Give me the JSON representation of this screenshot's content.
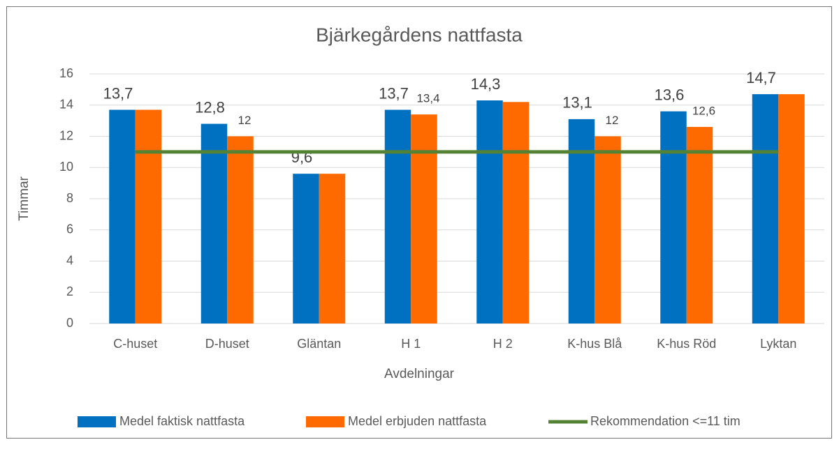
{
  "chart_data": {
    "type": "bar",
    "title": "Bjärkegårdens nattfasta",
    "x_label": "Avdelningar",
    "y_label": "Timmar",
    "categories": [
      "C-huset",
      "D-huset",
      "Gläntan",
      "H 1",
      "H 2",
      "K-hus Blå",
      "K-hus Röd",
      "Lyktan"
    ],
    "series": [
      {
        "name": "Medel faktisk nattfasta",
        "type": "bar",
        "color": "#0070c0",
        "values": [
          13.7,
          12.8,
          9.6,
          13.7,
          14.3,
          13.1,
          13.6,
          14.7
        ],
        "value_labels": [
          "13,7",
          "12,8",
          "9,6",
          "13,7",
          "14,3",
          "13,1",
          "13,6",
          "14,7"
        ]
      },
      {
        "name": "Medel erbjuden nattfasta",
        "type": "bar",
        "color": "#ff6a00",
        "values": [
          13.7,
          12,
          9.6,
          13.4,
          14.2,
          12,
          12.6,
          14.7
        ],
        "value_labels": [
          null,
          "12",
          null,
          "13,4",
          null,
          "12",
          "12,6",
          null
        ]
      },
      {
        "name": "Rekommendation <=11 tim",
        "type": "line",
        "color": "#548235",
        "values": [
          11,
          11,
          11,
          11,
          11,
          11,
          11,
          11
        ]
      }
    ],
    "ylim": [
      0,
      16
    ],
    "yticks": [
      0,
      2,
      4,
      6,
      8,
      10,
      12,
      14,
      16
    ],
    "grid": true,
    "legend": "bottom"
  }
}
